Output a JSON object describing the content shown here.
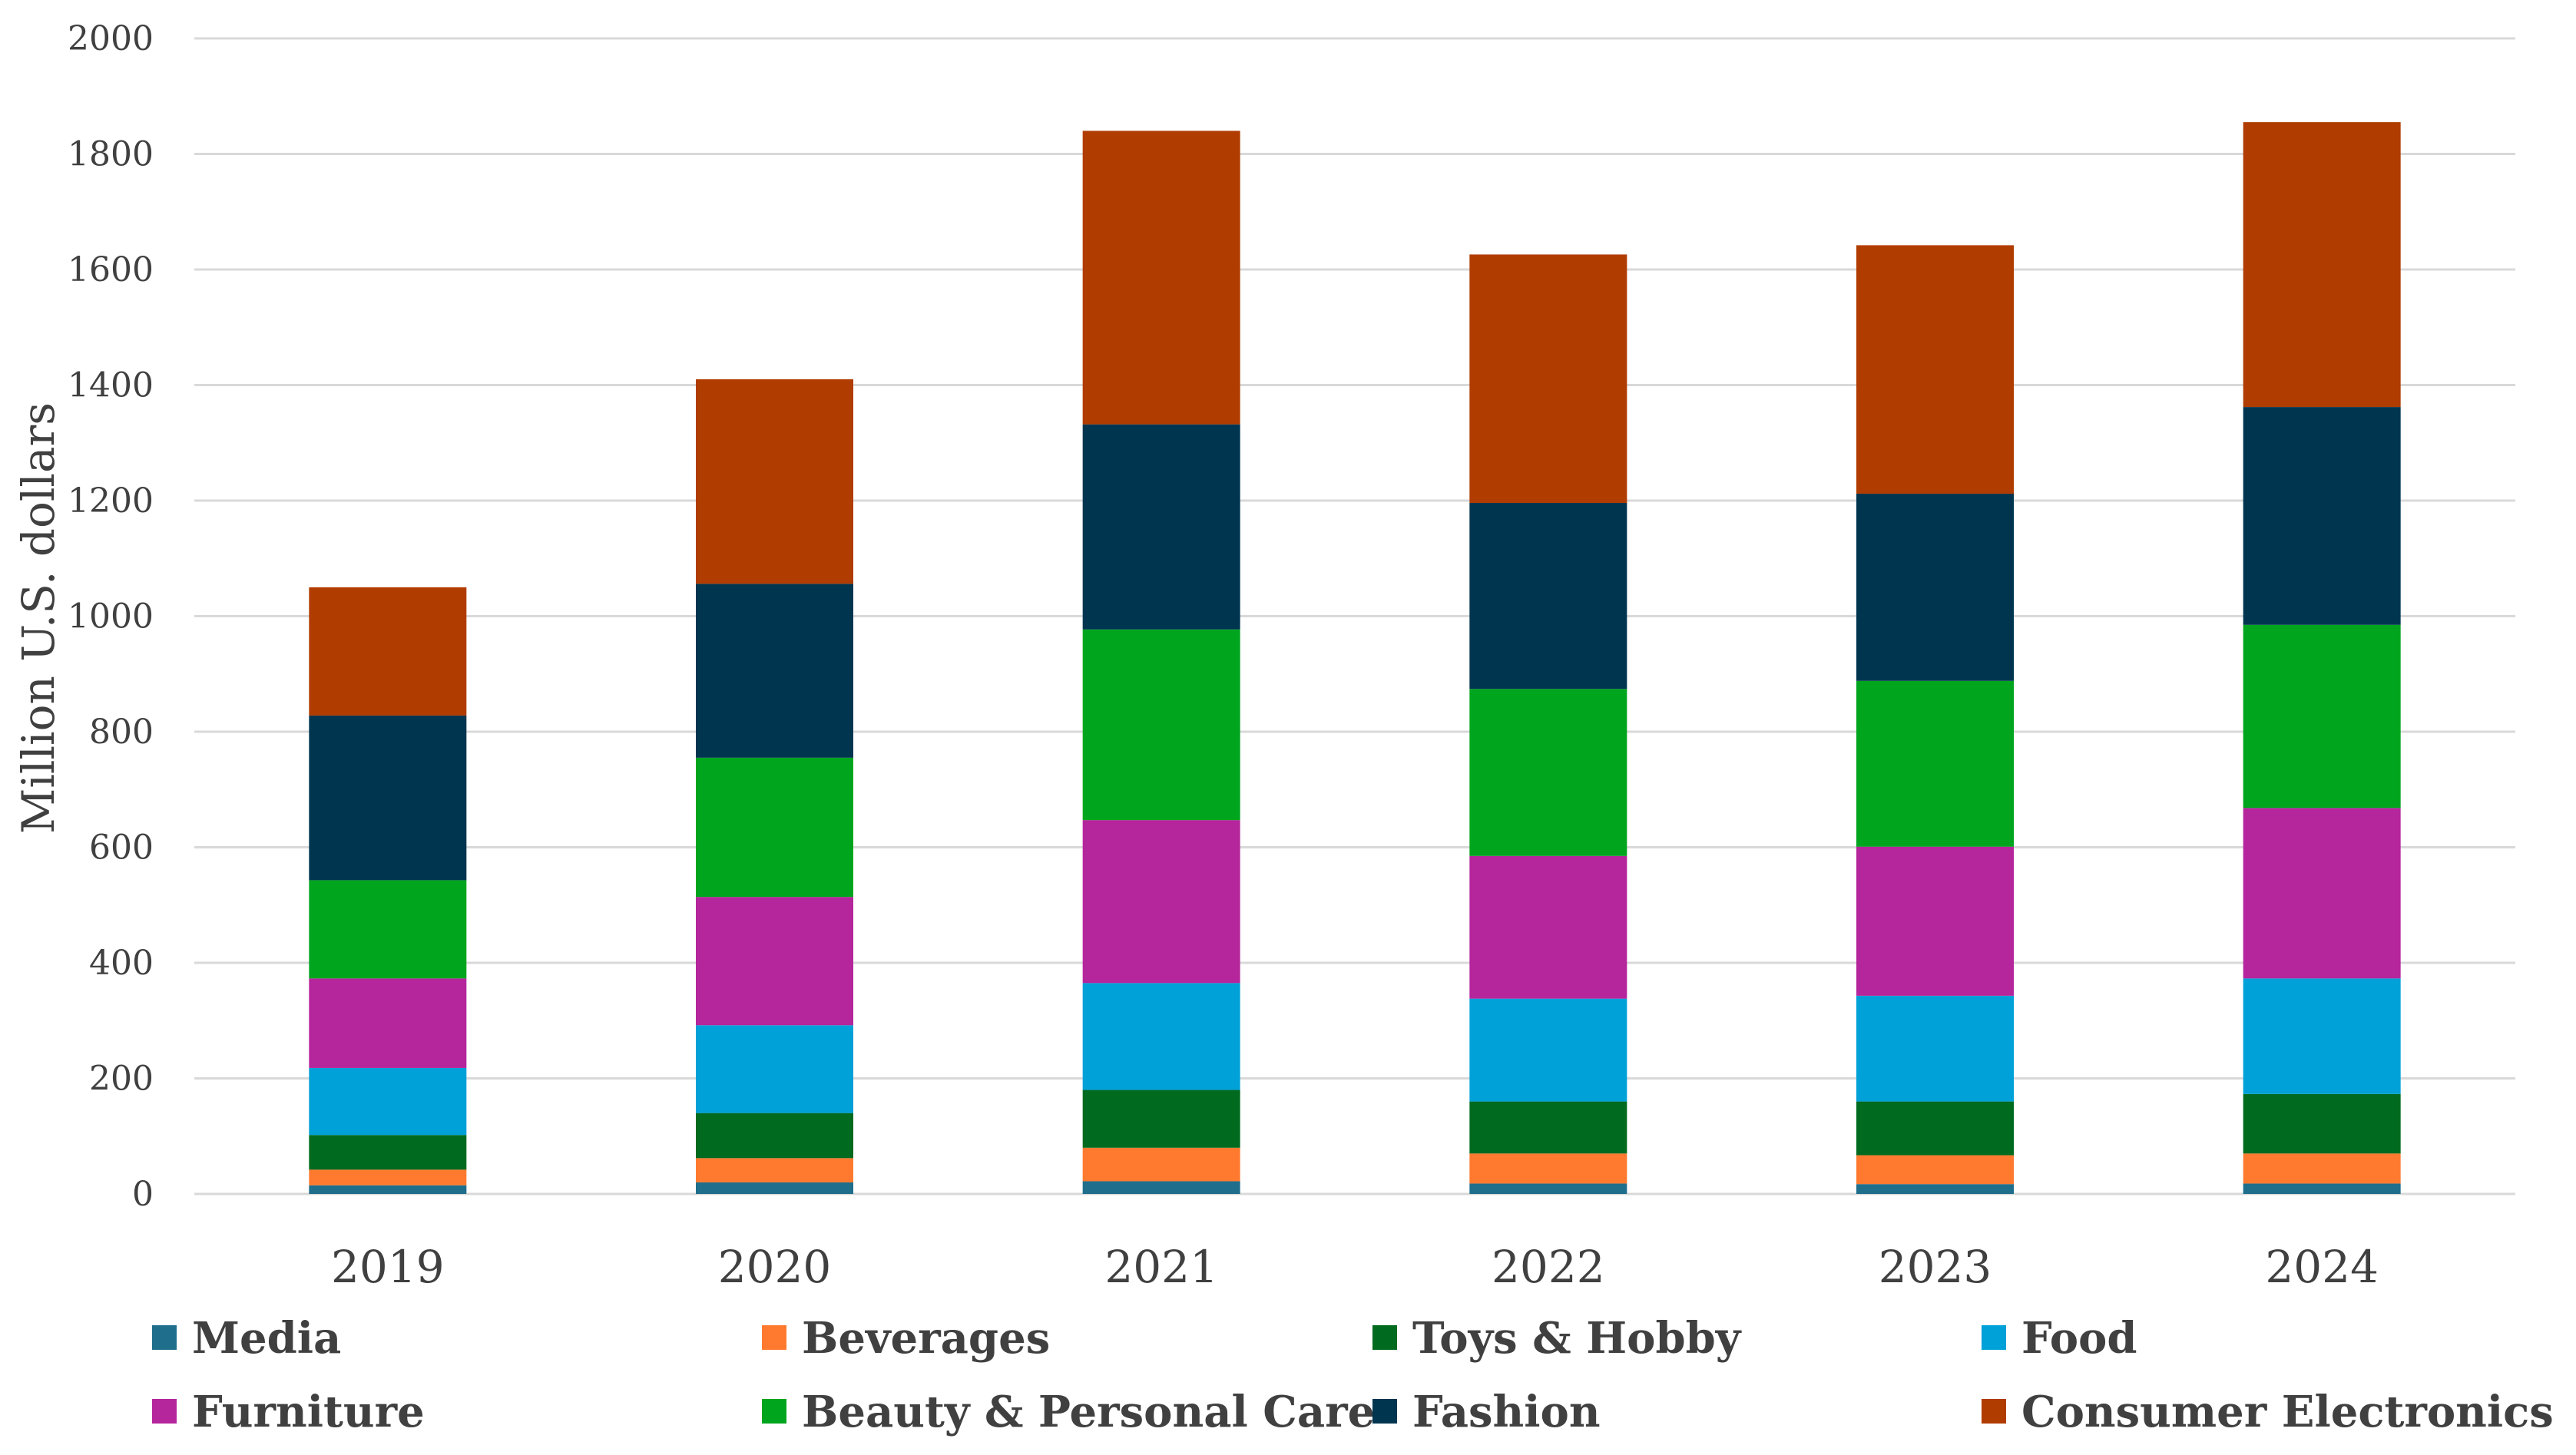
{
  "chart_data": {
    "type": "bar",
    "stacked": true,
    "title": "",
    "xlabel": "",
    "ylabel": "Million U.S. dollars",
    "ylim": [
      0,
      2000
    ],
    "yticks": [
      0,
      200,
      400,
      600,
      800,
      1000,
      1200,
      1400,
      1600,
      1800,
      2000
    ],
    "grid": true,
    "legend_position": "bottom",
    "categories": [
      "2019",
      "2020",
      "2021",
      "2022",
      "2023",
      "2024"
    ],
    "series": [
      {
        "name": "Media",
        "color": "#1f6e8c",
        "values": [
          15,
          20,
          22,
          18,
          17,
          18
        ]
      },
      {
        "name": "Beverages",
        "color": "#ff7a2f",
        "values": [
          27,
          42,
          58,
          52,
          50,
          52
        ]
      },
      {
        "name": "Toys & Hobby",
        "color": "#006a1e",
        "values": [
          60,
          78,
          100,
          90,
          93,
          103
        ]
      },
      {
        "name": "Food",
        "color": "#00a0d8",
        "values": [
          116,
          152,
          185,
          178,
          183,
          200
        ]
      },
      {
        "name": "Furniture",
        "color": "#b5259b",
        "values": [
          155,
          222,
          282,
          247,
          258,
          295
        ]
      },
      {
        "name": "Beauty & Personal Care",
        "color": "#00a51e",
        "values": [
          170,
          241,
          330,
          289,
          287,
          317
        ]
      },
      {
        "name": "Fashion",
        "color": "#003550",
        "values": [
          285,
          301,
          355,
          322,
          324,
          377
        ]
      },
      {
        "name": "Consumer Electronics",
        "color": "#b03c00",
        "values": [
          222,
          354,
          508,
          430,
          430,
          493
        ]
      }
    ]
  }
}
